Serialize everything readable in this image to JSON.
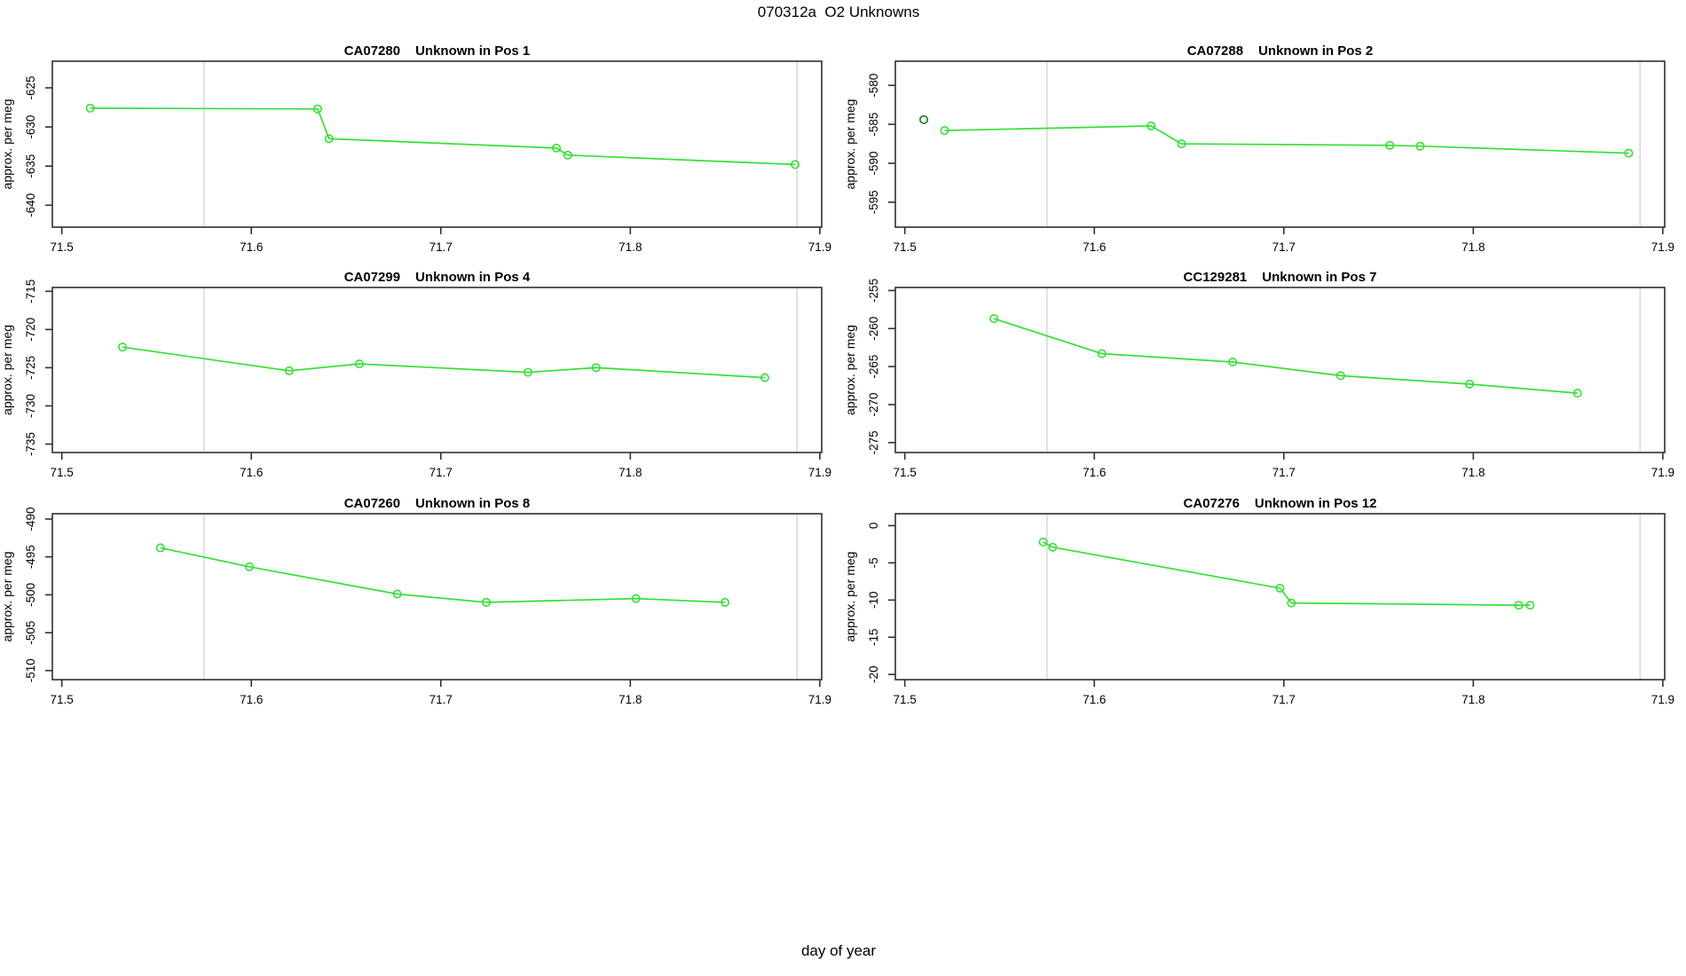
{
  "figure": {
    "title": "070312a  O2 Unknowns",
    "xlabel": "day of year",
    "ylabel": "approx. per meg",
    "line_color": "#35e035",
    "outlier_color": "#1a7f1a",
    "gridline_color": "#d7d7d7",
    "axis_color": "#2f2f2f",
    "xlim": [
      71.495,
      71.901
    ],
    "x_ticks": [
      71.5,
      71.6,
      71.7,
      71.8,
      71.9
    ],
    "gridlines_x": [
      71.575,
      71.888
    ]
  },
  "chart_data": [
    {
      "type": "line",
      "title_id": "CA07280",
      "title_desc": "Unknown in Pos 1",
      "grid": {
        "row": 0,
        "col": 0
      },
      "ylim": [
        -642.8,
        -621.6
      ],
      "yticks": [
        -640,
        -635,
        -630,
        -625
      ],
      "x": [
        71.515,
        71.635,
        71.641,
        71.761,
        71.767,
        71.887
      ],
      "y": [
        -627.6,
        -627.7,
        -631.5,
        -632.7,
        -633.6,
        -634.8
      ],
      "outliers": []
    },
    {
      "type": "line",
      "title_id": "CA07288",
      "title_desc": "Unknown in Pos 2",
      "grid": {
        "row": 0,
        "col": 1
      },
      "ylim": [
        -598.2,
        -576.9
      ],
      "yticks": [
        -595,
        -590,
        -585,
        -580
      ],
      "x": [
        71.521,
        71.63,
        71.646,
        71.756,
        71.772,
        71.882
      ],
      "y": [
        -585.8,
        -585.2,
        -587.5,
        -587.7,
        -587.8,
        -588.7
      ],
      "outliers": [
        {
          "x": 71.51,
          "y": -584.4
        }
      ]
    },
    {
      "type": "line",
      "title_id": "CA07299",
      "title_desc": "Unknown in Pos 4",
      "grid": {
        "row": 1,
        "col": 0
      },
      "ylim": [
        -736.1,
        -714.5
      ],
      "yticks": [
        -735,
        -730,
        -725,
        -720,
        -715
      ],
      "x": [
        71.532,
        71.62,
        71.657,
        71.746,
        71.782,
        71.871
      ],
      "y": [
        -722.3,
        -725.4,
        -724.5,
        -725.6,
        -725.0,
        -726.3
      ],
      "outliers": []
    },
    {
      "type": "line",
      "title_id": "CC129281",
      "title_desc": "Unknown in Pos 7",
      "grid": {
        "row": 1,
        "col": 1
      },
      "ylim": [
        -276.3,
        -254.6
      ],
      "yticks": [
        -275,
        -270,
        -265,
        -260,
        -255
      ],
      "x": [
        71.547,
        71.604,
        71.673,
        71.73,
        71.798,
        71.855
      ],
      "y": [
        -258.7,
        -263.3,
        -264.4,
        -266.2,
        -267.3,
        -268.5
      ],
      "outliers": []
    },
    {
      "type": "line",
      "title_id": "CA07260",
      "title_desc": "Unknown in Pos 8",
      "grid": {
        "row": 2,
        "col": 0
      },
      "ylim": [
        -511.2,
        -489.3
      ],
      "yticks": [
        -510,
        -505,
        -500,
        -495,
        -490
      ],
      "x": [
        71.552,
        71.599,
        71.677,
        71.724,
        71.803,
        71.85
      ],
      "y": [
        -493.8,
        -496.3,
        -499.9,
        -501.0,
        -500.5,
        -501.0
      ],
      "outliers": []
    },
    {
      "type": "line",
      "title_id": "CA07276",
      "title_desc": "Unknown in Pos 12",
      "grid": {
        "row": 2,
        "col": 1
      },
      "ylim": [
        -20.7,
        1.6
      ],
      "yticks": [
        -20,
        -15,
        -10,
        -5,
        0
      ],
      "x": [
        71.573,
        71.578,
        71.698,
        71.704,
        71.824,
        71.83
      ],
      "y": [
        -2.2,
        -2.9,
        -8.4,
        -10.4,
        -10.7,
        -10.7
      ],
      "outliers": []
    }
  ]
}
